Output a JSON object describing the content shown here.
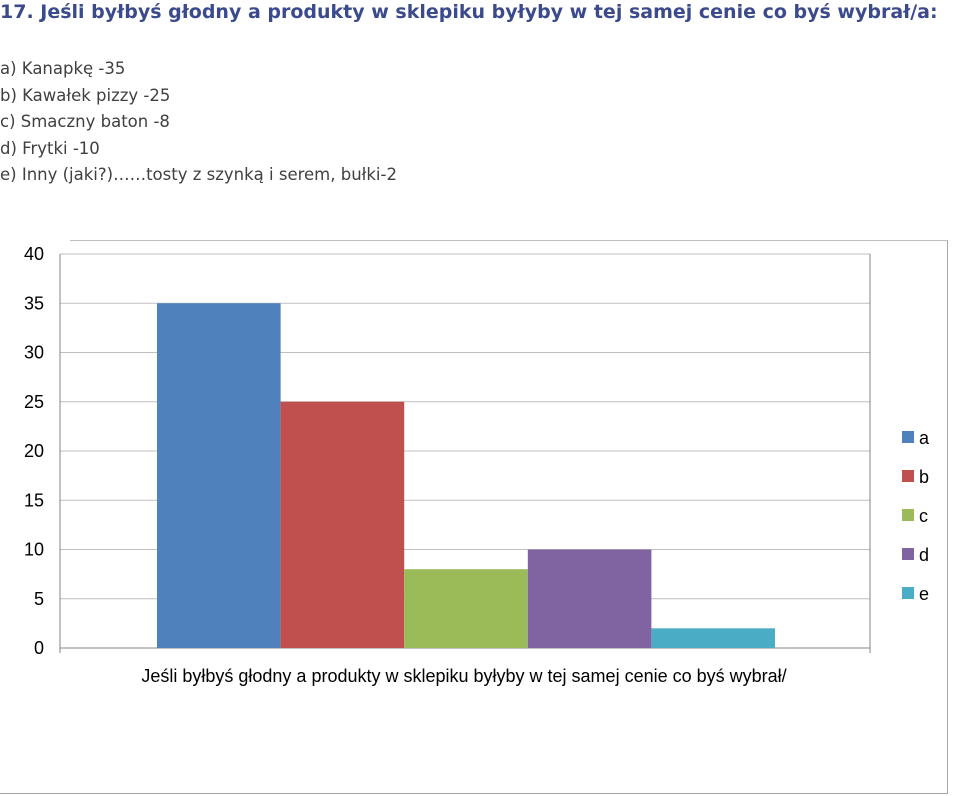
{
  "question": {
    "title": "17. Jeśli byłbyś głodny a produkty w sklepiku byłyby w tej samej cenie co byś wybrał/a:"
  },
  "options": [
    "a) Kanapkę -35",
    "b) Kawałek pizzy -25",
    "c) Smaczny baton -8",
    "d) Frytki -10",
    "e) Inny (jaki?)……tosty z szynką i serem, bułki-2"
  ],
  "colors": {
    "a": "#4f81bd",
    "b": "#c0504d",
    "c": "#9bbb59",
    "d": "#8064a2",
    "e": "#4bacc6",
    "grid": "#bfbfbf"
  },
  "chart_data": {
    "type": "bar",
    "title": "",
    "xlabel": "Jeśli byłbyś głodny a produkty w sklepiku byłyby w tej samej cenie co byś wybrał/",
    "ylabel": "",
    "ylim": [
      0,
      40
    ],
    "yticks": [
      0,
      5,
      10,
      15,
      20,
      25,
      30,
      35,
      40
    ],
    "grid": true,
    "legend_position": "right",
    "series": [
      {
        "name": "a",
        "values": [
          35
        ]
      },
      {
        "name": "b",
        "values": [
          25
        ]
      },
      {
        "name": "c",
        "values": [
          8
        ]
      },
      {
        "name": "d",
        "values": [
          10
        ]
      },
      {
        "name": "e",
        "values": [
          2
        ]
      }
    ]
  }
}
